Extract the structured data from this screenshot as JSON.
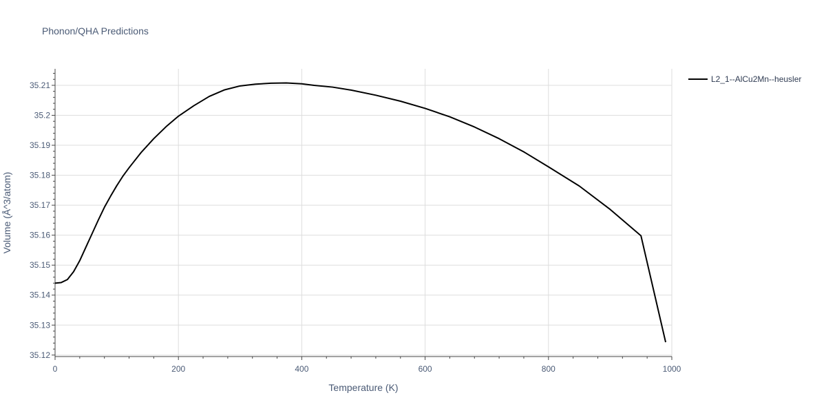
{
  "chart_data": {
    "type": "line",
    "title": "Phonon/QHA Predictions",
    "xlabel": "Temperature (K)",
    "ylabel": "Volume (Å^3/atom)",
    "xlim": [
      0,
      1000
    ],
    "ylim": [
      35.1195,
      35.2155
    ],
    "x_ticks": [
      0,
      200,
      400,
      600,
      800,
      1000
    ],
    "y_ticks": [
      35.12,
      35.13,
      35.14,
      35.15,
      35.16,
      35.17,
      35.18,
      35.19,
      35.2,
      35.21
    ],
    "x_tick_labels": [
      "0",
      "200",
      "400",
      "600",
      "800",
      "1000"
    ],
    "y_tick_labels": [
      "35.12",
      "35.13",
      "35.14",
      "35.15",
      "35.16",
      "35.17",
      "35.18",
      "35.19",
      "35.2",
      "35.21"
    ],
    "grid": true,
    "legend_position": "top-right",
    "series": [
      {
        "name": "L2_1--AlCu2Mn--heusler",
        "color": "#000000",
        "x": [
          0,
          10,
          20,
          30,
          40,
          50,
          60,
          70,
          80,
          90,
          100,
          110,
          120,
          140,
          160,
          180,
          200,
          225,
          250,
          275,
          300,
          325,
          350,
          375,
          400,
          420,
          450,
          480,
          520,
          560,
          600,
          640,
          680,
          720,
          760,
          800,
          850,
          900,
          950,
          990
        ],
        "y": [
          35.144,
          35.1442,
          35.1452,
          35.1478,
          35.1515,
          35.156,
          35.1605,
          35.165,
          35.1693,
          35.173,
          35.1765,
          35.1797,
          35.1825,
          35.1877,
          35.1922,
          35.1962,
          35.1997,
          35.2032,
          35.2063,
          35.2085,
          35.2098,
          35.2104,
          35.2107,
          35.2108,
          35.2105,
          35.21,
          35.2094,
          35.2084,
          35.2067,
          35.2047,
          35.2023,
          35.1995,
          35.1961,
          35.1922,
          35.1878,
          35.1828,
          35.1764,
          35.1686,
          35.1598,
          35.1243
        ]
      }
    ]
  }
}
